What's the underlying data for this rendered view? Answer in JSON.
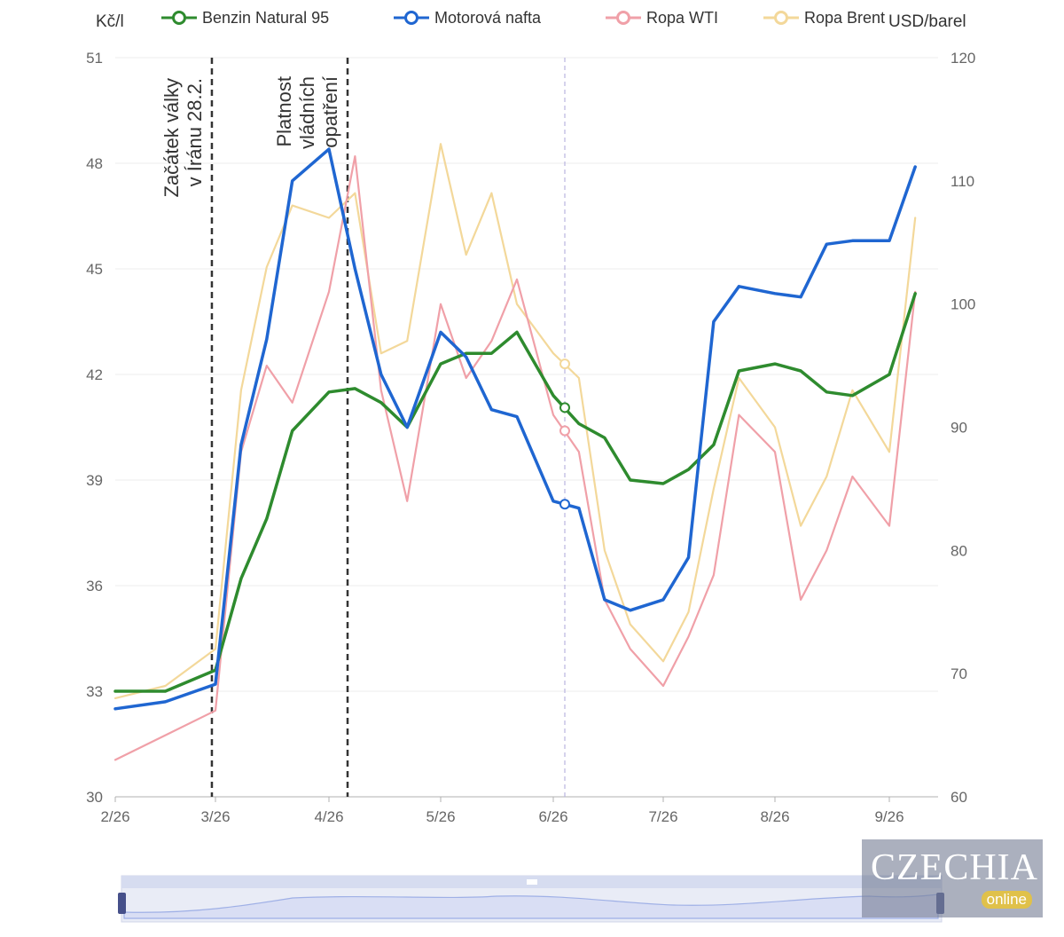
{
  "chart_data": {
    "type": "line",
    "left_axis": {
      "label": "Kč/l",
      "ticks": [
        30,
        33,
        36,
        39,
        42,
        45,
        48,
        51
      ],
      "range": [
        30,
        51
      ]
    },
    "right_axis": {
      "label": "USD/barel",
      "ticks": [
        60,
        70,
        80,
        90,
        100,
        110,
        120
      ],
      "range": [
        60,
        120
      ]
    },
    "x_ticks": [
      "2/26",
      "3/26",
      "4/26",
      "5/26",
      "6/26",
      "7/26",
      "8/26",
      "9/26"
    ],
    "grid": "horizontal",
    "legend_position": "top",
    "hover_date": "6/26",
    "series": [
      {
        "name": "Benzin Natural 95",
        "axis": "left",
        "color": "#2e8b2e",
        "x": [
          "2026-02-01",
          "2026-02-15",
          "2026-03-01",
          "2026-03-08",
          "2026-03-15",
          "2026-03-22",
          "2026-04-01",
          "2026-04-08",
          "2026-04-15",
          "2026-04-22",
          "2026-05-01",
          "2026-05-08",
          "2026-05-15",
          "2026-05-22",
          "2026-06-01",
          "2026-06-08",
          "2026-06-15",
          "2026-06-22",
          "2026-07-01",
          "2026-07-08",
          "2026-07-15",
          "2026-07-22",
          "2026-08-01",
          "2026-08-08",
          "2026-08-15",
          "2026-08-22",
          "2026-09-01",
          "2026-09-08"
        ],
        "y": [
          33.0,
          33.0,
          33.6,
          36.2,
          37.9,
          40.4,
          41.5,
          41.6,
          41.2,
          40.5,
          42.3,
          42.6,
          42.6,
          43.2,
          41.4,
          40.6,
          40.2,
          39.0,
          38.9,
          39.3,
          40.0,
          42.1,
          42.3,
          42.1,
          41.5,
          41.4,
          42.0,
          44.3
        ]
      },
      {
        "name": "Motorová nafta",
        "axis": "left",
        "color": "#1f66d1",
        "x": [
          "2026-02-01",
          "2026-02-15",
          "2026-03-01",
          "2026-03-08",
          "2026-03-15",
          "2026-03-22",
          "2026-04-01",
          "2026-04-08",
          "2026-04-15",
          "2026-04-22",
          "2026-05-01",
          "2026-05-08",
          "2026-05-15",
          "2026-05-22",
          "2026-06-01",
          "2026-06-08",
          "2026-06-15",
          "2026-06-22",
          "2026-07-01",
          "2026-07-08",
          "2026-07-15",
          "2026-07-22",
          "2026-08-01",
          "2026-08-08",
          "2026-08-15",
          "2026-08-22",
          "2026-09-01",
          "2026-09-08"
        ],
        "y": [
          32.5,
          32.7,
          33.2,
          40.0,
          43.0,
          47.5,
          48.4,
          45.0,
          42.0,
          40.5,
          43.2,
          42.5,
          41.0,
          40.8,
          38.4,
          38.2,
          35.6,
          35.3,
          35.6,
          36.8,
          43.5,
          44.5,
          44.3,
          44.2,
          45.7,
          45.8,
          45.8,
          47.9
        ]
      },
      {
        "name": "Ropa WTI",
        "axis": "right",
        "color": "#f0a0a8",
        "x": [
          "2026-02-01",
          "2026-02-15",
          "2026-03-01",
          "2026-03-08",
          "2026-03-15",
          "2026-03-22",
          "2026-04-01",
          "2026-04-08",
          "2026-04-15",
          "2026-04-22",
          "2026-05-01",
          "2026-05-08",
          "2026-05-15",
          "2026-05-22",
          "2026-06-01",
          "2026-06-08",
          "2026-06-15",
          "2026-06-22",
          "2026-07-01",
          "2026-07-08",
          "2026-07-15",
          "2026-07-22",
          "2026-08-01",
          "2026-08-08",
          "2026-08-15",
          "2026-08-22",
          "2026-09-01",
          "2026-09-08"
        ],
        "y": [
          63,
          65,
          67,
          88,
          95,
          92,
          101,
          112,
          93,
          84,
          100,
          94,
          97,
          102,
          91,
          88,
          76,
          72,
          69,
          73,
          78,
          91,
          88,
          76,
          80,
          86,
          82,
          101
        ]
      },
      {
        "name": "Ropa Brent",
        "axis": "right",
        "color": "#f3d89a",
        "x": [
          "2026-02-01",
          "2026-02-15",
          "2026-03-01",
          "2026-03-08",
          "2026-03-15",
          "2026-03-22",
          "2026-04-01",
          "2026-04-08",
          "2026-04-15",
          "2026-04-22",
          "2026-05-01",
          "2026-05-08",
          "2026-05-15",
          "2026-05-22",
          "2026-06-01",
          "2026-06-08",
          "2026-06-15",
          "2026-06-22",
          "2026-07-01",
          "2026-07-08",
          "2026-07-15",
          "2026-07-22",
          "2026-08-01",
          "2026-08-08",
          "2026-08-15",
          "2026-08-22",
          "2026-09-01",
          "2026-09-08"
        ],
        "y": [
          68,
          69,
          72,
          93,
          103,
          108,
          107,
          109,
          96,
          97,
          113,
          104,
          109,
          100,
          96,
          94,
          80,
          74,
          71,
          75,
          85,
          94,
          90,
          82,
          86,
          93,
          88,
          107
        ]
      }
    ],
    "annotations": [
      {
        "at": "2026-02-28",
        "lines": [
          "Začátek války",
          "v Íránu 28.2."
        ]
      },
      {
        "at": "2026-04-06",
        "lines": [
          "Platnost",
          "vládních",
          "opatření"
        ]
      }
    ]
  },
  "watermark": {
    "brand": "CZECHIA",
    "tagline": "online"
  }
}
